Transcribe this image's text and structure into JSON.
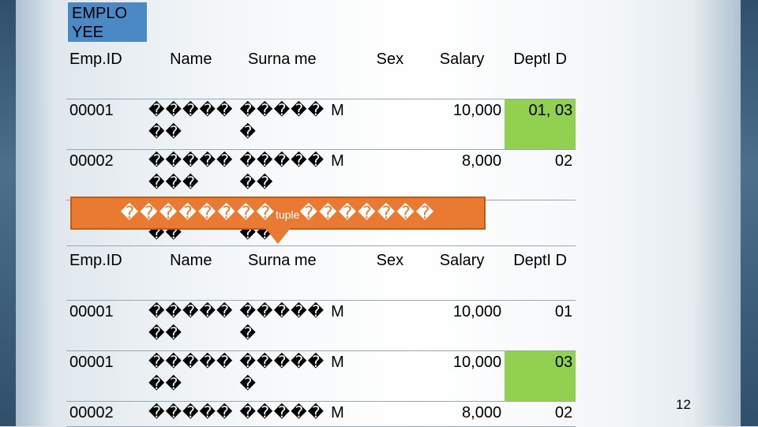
{
  "title": "EMPLO YEE",
  "headers": [
    "Emp.ID",
    "Name",
    "Surna me",
    "Sex",
    "Salary",
    "DeptI D"
  ],
  "table1_rows": [
    {
      "id": "00001",
      "name": "�����",
      "surname": "�����",
      "name2": "��",
      "surname2": "�",
      "sex": "M",
      "salary": "10,000",
      "dept": "01, 03"
    },
    {
      "id": "00002",
      "name": "�����",
      "surname": "�����",
      "name2": "���",
      "surname2": "��",
      "sex": "M",
      "salary": "8,000",
      "dept": "02"
    },
    {
      "id": "",
      "name": "",
      "surname": "",
      "name2": "��",
      "surname2": "��",
      "sex": "",
      "salary": "",
      "dept": ""
    }
  ],
  "callout": {
    "prefix": "��������",
    "word": "tuple",
    "suffix": "�������"
  },
  "table2_rows": [
    {
      "id": "00001",
      "name": "�����",
      "surname": "�����",
      "name2": "��",
      "surname2": "�",
      "sex": "M",
      "salary": "10,000",
      "dept": "01"
    },
    {
      "id": "00001",
      "name": "�����",
      "surname": "�����",
      "name2": "��",
      "surname2": "�",
      "sex": "M",
      "salary": "10,000",
      "dept": "03"
    },
    {
      "id": "00002",
      "name": "�����",
      "surname": "�����",
      "name2": "",
      "surname2": "",
      "sex": "M",
      "salary": "8,000",
      "dept": "02"
    }
  ],
  "page_number": "12",
  "colors": {
    "title_bg": "#4a88c6",
    "highlight": "#92d050",
    "callout": "#ea7a32"
  }
}
